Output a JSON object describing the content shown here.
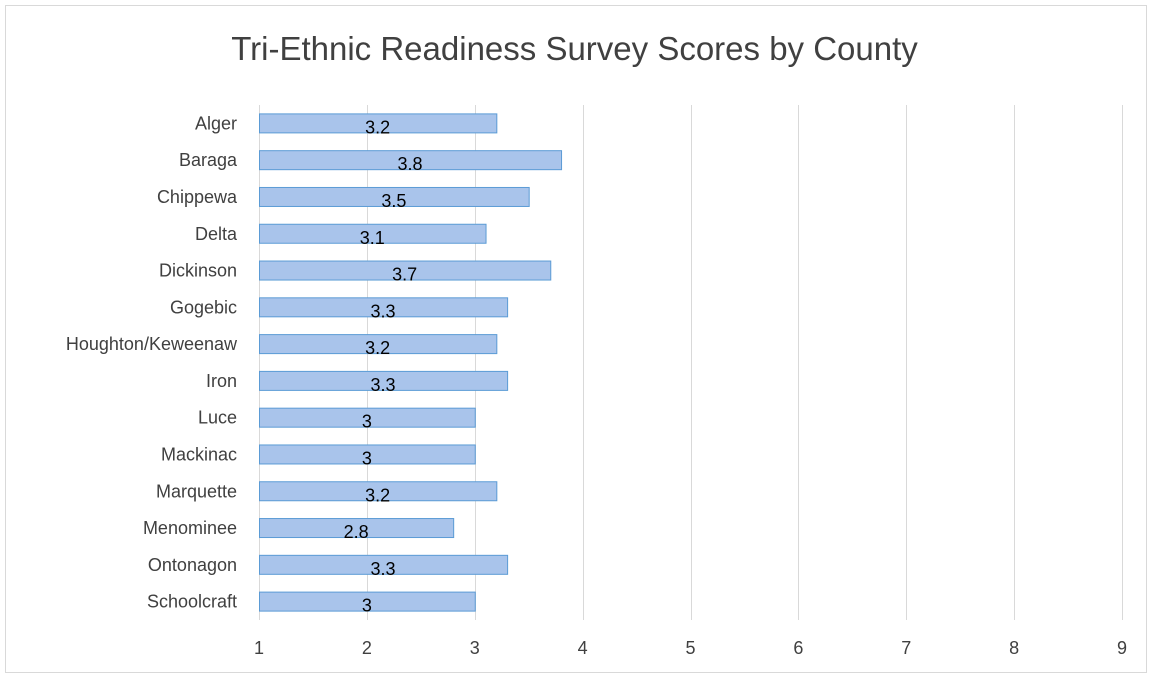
{
  "chart_data": {
    "type": "bar",
    "orientation": "horizontal",
    "title": "Tri-Ethnic Readiness Survey Scores by County",
    "categories": [
      "Alger",
      "Baraga",
      "Chippewa",
      "Delta",
      "Dickinson",
      "Gogebic",
      "Houghton/Keweenaw",
      "Iron",
      "Luce",
      "Mackinac",
      "Marquette",
      "Menominee",
      "Ontonagon",
      "Schoolcraft"
    ],
    "values": [
      3.2,
      3.8,
      3.5,
      3.1,
      3.7,
      3.3,
      3.2,
      3.3,
      3,
      3,
      3.2,
      2.8,
      3.3,
      3
    ],
    "data_labels": [
      "3.2",
      "3.8",
      "3.5",
      "3.1",
      "3.7",
      "3.3",
      "3.2",
      "3.3",
      "3",
      "3",
      "3.2",
      "2.8",
      "3.3",
      "3"
    ],
    "xlim": [
      1,
      9
    ],
    "xticks": [
      "1",
      "2",
      "3",
      "4",
      "5",
      "6",
      "7",
      "8",
      "9"
    ],
    "xlabel": "",
    "ylabel": "",
    "grid": true,
    "legend": "none",
    "colors": {
      "bar_fill": "#a9c4eb",
      "bar_stroke": "#5b9bd5",
      "grid": "#d9d9d9",
      "text": "#404040"
    }
  }
}
